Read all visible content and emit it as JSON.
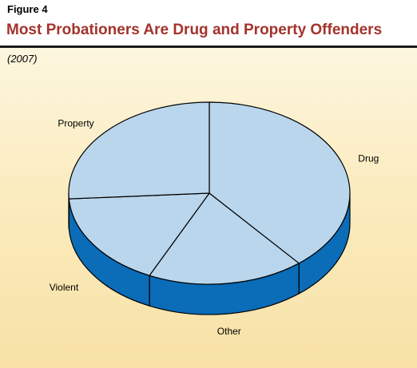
{
  "figure_label": "Figure 4",
  "title": "Most Probationers Are Drug and Property Offenders",
  "subtitle": "(2007)",
  "colors": {
    "title": "#a3332c",
    "slice_top": "#b9d6ec",
    "slice_side": "#0b6cb8",
    "outline": "#000000"
  },
  "chart_data": {
    "type": "pie",
    "style": "3d",
    "labels": [
      "Drug",
      "Other",
      "Violent",
      "Property"
    ],
    "values": [
      39,
      18,
      17,
      26
    ],
    "unit": "percent"
  }
}
